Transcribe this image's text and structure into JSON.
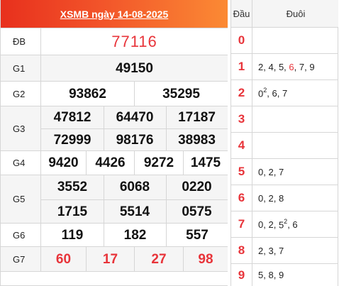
{
  "header": {
    "title": "XSMB ngày 14-08-2025"
  },
  "prizes": {
    "db": {
      "label": "ĐB",
      "numbers": [
        "77116"
      ]
    },
    "g1": {
      "label": "G1",
      "numbers": [
        "49150"
      ]
    },
    "g2": {
      "label": "G2",
      "numbers": [
        "93862",
        "35295"
      ]
    },
    "g3": {
      "label": "G3",
      "numbers": [
        "47812",
        "64470",
        "17187",
        "72999",
        "98176",
        "38983"
      ]
    },
    "g4": {
      "label": "G4",
      "numbers": [
        "9420",
        "4426",
        "9272",
        "1475"
      ]
    },
    "g5": {
      "label": "G5",
      "numbers": [
        "3552",
        "6068",
        "0220",
        "1715",
        "5514",
        "0575"
      ]
    },
    "g6": {
      "label": "G6",
      "numbers": [
        "119",
        "182",
        "557"
      ]
    },
    "g7": {
      "label": "G7",
      "numbers": [
        "60",
        "17",
        "27",
        "98"
      ]
    }
  },
  "loto": {
    "head_label": "Đầu",
    "tail_label": "Đuôi",
    "rows": [
      {
        "head": "0",
        "tails": ""
      },
      {
        "head": "1",
        "tails": "2, 4, 5, 6, 7, 9"
      },
      {
        "head": "2",
        "tails": "02, 6, 7"
      },
      {
        "head": "3",
        "tails": ""
      },
      {
        "head": "4",
        "tails": ""
      },
      {
        "head": "5",
        "tails": "0, 2, 7"
      },
      {
        "head": "6",
        "tails": "0, 2, 8"
      },
      {
        "head": "7",
        "tails": "0, 2, 52, 6"
      },
      {
        "head": "8",
        "tails": "2, 3, 7"
      },
      {
        "head": "9",
        "tails": "5, 8, 9"
      }
    ]
  },
  "colors": {
    "accent_red": "#e8343a",
    "header_start": "#e8301d",
    "header_end": "#fb8a34"
  }
}
